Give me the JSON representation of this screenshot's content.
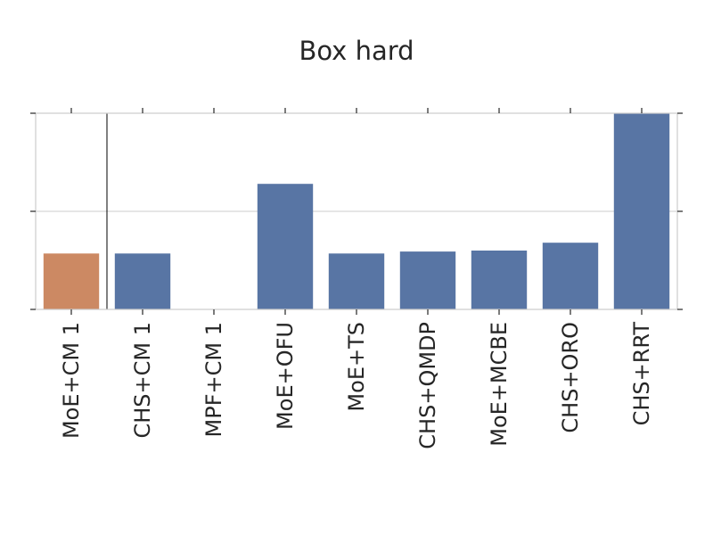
{
  "chart_data": {
    "type": "bar",
    "title": "Box hard",
    "xlabel": "",
    "ylabel": "",
    "categories": [
      "MoE+CM 1",
      "CHS+CM 1",
      "MPF+CM 1",
      "MoE+OFU",
      "MoE+TS",
      "CHS+QMDP",
      "MoE+MCBE",
      "CHS+ORO",
      "CHS+RRT"
    ],
    "values": [
      0.57,
      0.57,
      0,
      1.28,
      0.57,
      0.59,
      0.6,
      0.68,
      2.0
    ],
    "ylim": [
      0,
      2.0
    ],
    "yticks": [
      0,
      1,
      2
    ],
    "ytick_labels_visible": false,
    "grid": true,
    "highlight_index": 0,
    "divider_after_index": 0,
    "colors": {
      "bar": "#5875a4",
      "highlight": "#cc8963",
      "grid": "#cccccc",
      "frame": "#cccccc",
      "divider": "#000000",
      "text": "#262626"
    }
  }
}
